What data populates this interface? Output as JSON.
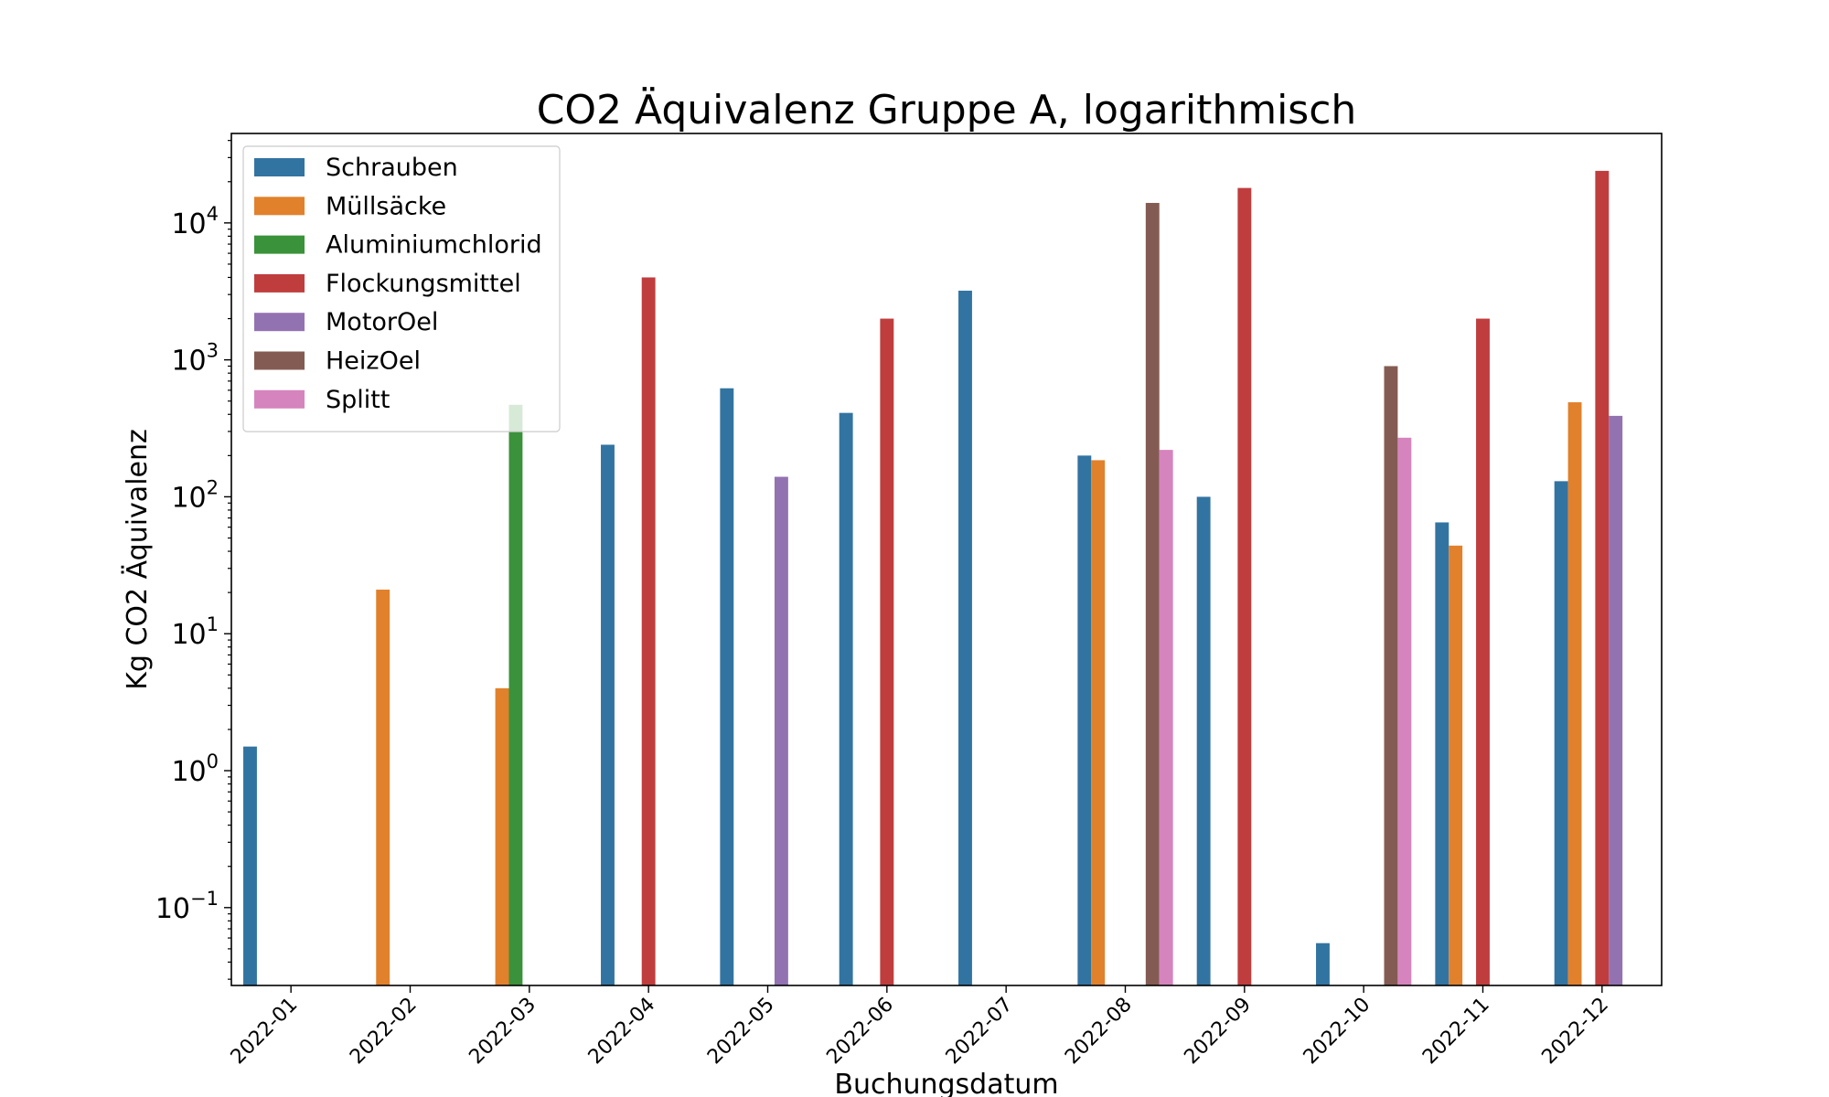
{
  "chart_data": {
    "type": "bar",
    "title": "CO2 Äquivalenz Gruppe A, logarithmisch",
    "xlabel": "Buchungsdatum",
    "ylabel": "Kg CO2 Äquivalenz",
    "yscale": "log",
    "ylim": [
      0.027,
      45000
    ],
    "yticks": [
      {
        "value": 0.1,
        "base": "10",
        "exp": "−1"
      },
      {
        "value": 1,
        "base": "10",
        "exp": "0"
      },
      {
        "value": 10,
        "base": "10",
        "exp": "1"
      },
      {
        "value": 100,
        "base": "10",
        "exp": "2"
      },
      {
        "value": 1000,
        "base": "10",
        "exp": "3"
      },
      {
        "value": 10000,
        "base": "10",
        "exp": "4"
      }
    ],
    "grid": false,
    "legend_position": "top-left",
    "categories": [
      "2022-01",
      "2022-02",
      "2022-03",
      "2022-04",
      "2022-05",
      "2022-06",
      "2022-07",
      "2022-08",
      "2022-09",
      "2022-10",
      "2022-11",
      "2022-12"
    ],
    "series": [
      {
        "name": "Schrauben",
        "color": "#3274a1",
        "values": [
          1.5,
          null,
          null,
          240,
          620,
          410,
          3200,
          200,
          100,
          0.055,
          65,
          130
        ]
      },
      {
        "name": "Müllsäcke",
        "color": "#e1812c",
        "values": [
          null,
          21,
          4,
          null,
          null,
          null,
          null,
          185,
          null,
          null,
          44,
          490
        ]
      },
      {
        "name": "Aluminiumchlorid",
        "color": "#3a923a",
        "values": [
          null,
          null,
          470,
          null,
          null,
          null,
          null,
          null,
          null,
          null,
          null,
          null
        ]
      },
      {
        "name": "Flockungsmittel",
        "color": "#c03d3e",
        "values": [
          null,
          null,
          null,
          4000,
          null,
          2000,
          null,
          null,
          18000,
          null,
          2000,
          24000
        ]
      },
      {
        "name": "MotorOel",
        "color": "#9372b2",
        "values": [
          null,
          null,
          null,
          null,
          140,
          null,
          null,
          null,
          null,
          null,
          null,
          390
        ]
      },
      {
        "name": "HeizOel",
        "color": "#845b53",
        "values": [
          null,
          null,
          null,
          null,
          null,
          null,
          null,
          14000,
          null,
          900,
          null,
          null
        ]
      },
      {
        "name": "Splitt",
        "color": "#d684bd",
        "values": [
          null,
          null,
          null,
          null,
          null,
          null,
          null,
          220,
          null,
          270,
          null,
          null
        ]
      }
    ]
  }
}
